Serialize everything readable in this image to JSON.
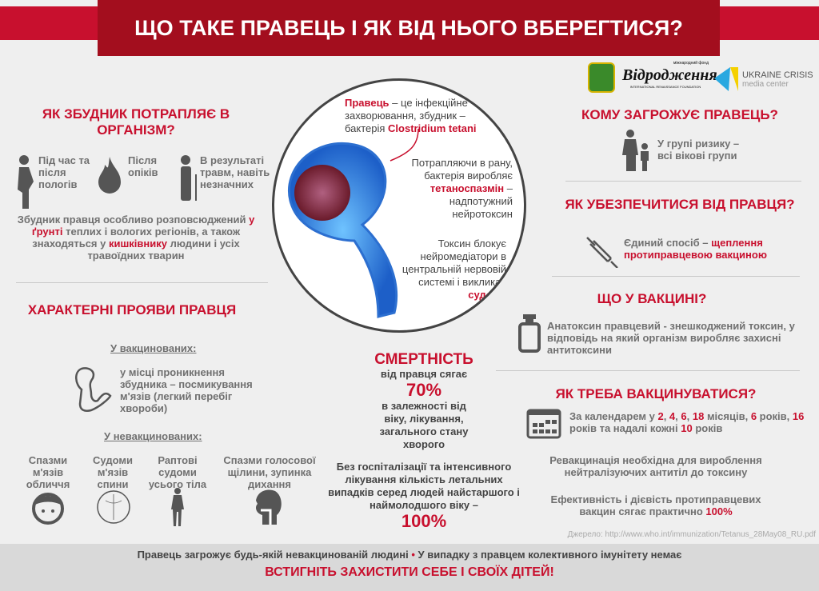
{
  "title": "ЩО ТАКЕ ПРАВЕЦЬ І ЯК ВІД НЬОГО ВБЕРЕГТИСЯ?",
  "logos": {
    "foundation": "Відродження",
    "foundation_small": "міжнародний фонд",
    "foundation_en": "INTERNATIONAL RENAISSANCE FOUNDATION",
    "uccm_1": "UKRAINE CRISIS",
    "uccm_2": "media center"
  },
  "entry": {
    "title": "ЯК ЗБУДНИК ПОТРАПЛЯЄ В ОРГАНІЗМ?",
    "items": [
      "Під час та після пологів",
      "Після опіків",
      "В результаті травм, навіть незначних"
    ],
    "para": [
      "Збудник правця особливо розповсюджений ",
      "у ґрунті",
      " теплих і вологих регіонів, а також знаходяться у ",
      "кишківнику",
      " людини і усіх травоїдних тварин"
    ]
  },
  "symptoms": {
    "title": "ХАРАКТЕРНІ ПРОЯВИ ПРАВЦЯ",
    "vaccinated": "У вакцинованих:",
    "vaccinated_text": "у місці проникнення збудника – посмикування м'язів (легкий перебіг хвороби)",
    "unvaccinated": "У невакцинованих:",
    "items": [
      "Спазми м'язів обличчя",
      "Судоми м'язів спини",
      "Раптові судоми усього тіла",
      "Спазми голосової щілини, зупинка дихання"
    ]
  },
  "circle": {
    "p1": [
      "Правець",
      " – це інфекційне захворювання, збудник – бактерія ",
      "Clostridium tetani"
    ],
    "p2": [
      "Потрапляючи в рану, бактерія виробляє ",
      "тетаноспазмін",
      " – надпотужний нейротоксин"
    ],
    "p3": [
      "Токсин блокує нейромедіатори в центральній нервовій системі і викликає ",
      "судоми"
    ]
  },
  "mortality": {
    "title": "СМЕРТНІСТЬ",
    "l1": "від правця сягає",
    "v1": "70%",
    "l2": "в залежності від віку, лікування, загального стану хворого",
    "l3": "Без госпіталізації та інтенсивного лікування кількість летальних випадків серед людей найстаршого і наймолодшого віку –",
    "v2": "100%"
  },
  "risk": {
    "title": "КОМУ ЗАГРОЖУЄ ПРАВЕЦЬ?",
    "text": "У групі ризику – всі вікові групи"
  },
  "protect": {
    "title": "ЯК УБЕЗПЕЧИТИСЯ ВІД ПРАВЦЯ?",
    "text": [
      "Єдиний спосіб – ",
      "щеплення протиправцевою вакциною"
    ]
  },
  "vaccine": {
    "title": "ЩО У ВАКЦИНІ?",
    "text": "Анатоксин правцевий -  знешкоджений токсин, у відповідь на який організм виробляє захисні антитоксини"
  },
  "schedule": {
    "title": "ЯК ТРЕБА ВАКЦИНУВАТИСЯ?",
    "text": [
      "За календарем у ",
      "2",
      ", ",
      "4",
      ", ",
      "6",
      ", ",
      "18",
      " місяців, ",
      "6",
      " років, ",
      "16",
      " років та надалі кожні ",
      "10",
      " років"
    ],
    "revac": "Ревакцинація необхідна для вироблення нейтралізуючих антитіл до токсину",
    "eff": [
      "Ефективність і дієвість протиправцевих вакцин сягає практично ",
      "100%"
    ]
  },
  "source": "Джерело: http://www.who.int/immunization/Tetanus_28May08_RU.pdf",
  "footer": {
    "l1a": "Правець загрожує будь-якій невакцинованій людині",
    "bullet": "•",
    "l1b": "У випадку з правцем колективного імунітету немає",
    "l2": "ВСТИГНІТЬ ЗАХИСТИТИ СЕБЕ І СВОЇХ ДІТЕЙ!"
  },
  "colors": {
    "accent": "#c8102e",
    "title_bg": "#a30e1e",
    "bg": "#efefef",
    "text": "#707070"
  }
}
